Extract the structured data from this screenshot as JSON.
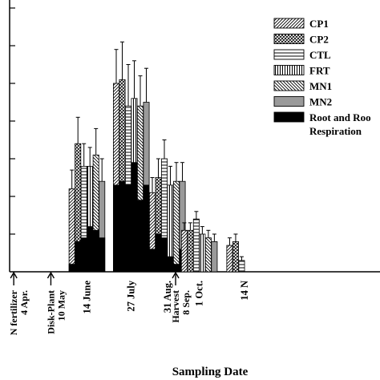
{
  "chart_data": {
    "type": "bar",
    "xlabel": "Sampling Date",
    "ylabel": "",
    "ylim": [
      0,
      35
    ],
    "grid": false,
    "legend_position": "top-right",
    "colors": {
      "axis": "#000000",
      "fill_gray": "#9a9a9a",
      "fill_black": "#000000",
      "background": "#ffffff"
    },
    "series": [
      {
        "name": "CP1",
        "pattern": "diag-right"
      },
      {
        "name": "CP2",
        "pattern": "crosshatch"
      },
      {
        "name": "CTL",
        "pattern": "horizontal"
      },
      {
        "name": "FRT",
        "pattern": "vertical"
      },
      {
        "name": "MN1",
        "pattern": "diag-left"
      },
      {
        "name": "MN2",
        "pattern": "gray"
      }
    ],
    "root_series": {
      "name": "Root and Root Respiration",
      "label_line1": "Root and Roo",
      "label_line2": "Respiration"
    },
    "sampling_dates": [
      {
        "label": "14 June",
        "day": 165,
        "values": [
          11,
          17,
          14,
          14,
          15.5,
          12
        ],
        "errors": [
          2.5,
          3.5,
          3,
          2.5,
          3.5,
          3
        ],
        "root": [
          1,
          4,
          4.5,
          6,
          5.5,
          4.5
        ]
      },
      {
        "label": "27 July",
        "day": 208,
        "values": [
          25,
          25.5,
          22,
          23,
          22,
          22.5
        ],
        "errors": [
          4.5,
          5,
          5.5,
          5,
          4,
          4.5
        ],
        "root": [
          11.5,
          12,
          11.5,
          14.5,
          9.5,
          11.5
        ]
      },
      {
        "label": "31 Aug.",
        "day": 243,
        "values": [
          10.5,
          12.5,
          15,
          11.5,
          12,
          12
        ],
        "errors": [
          2,
          2.5,
          2.5,
          2.5,
          2.5,
          2.5
        ],
        "root": [
          3,
          5,
          4.5,
          2,
          1,
          3
        ]
      },
      {
        "label": "1 Oct.",
        "day": 274,
        "values": [
          5.5,
          5.5,
          7,
          5,
          4.5,
          4
        ],
        "errors": [
          1,
          1,
          1,
          1,
          1,
          1
        ],
        "root": [
          0,
          0,
          0,
          0,
          0,
          0
        ]
      },
      {
        "label": "14 N",
        "day": 318,
        "values": [
          3.5,
          4,
          1.5
        ],
        "errors": [
          1,
          1,
          0.5
        ],
        "root": [
          0,
          0,
          0
        ]
      }
    ],
    "events": [
      {
        "label_lines": [
          "N fertilizer",
          "4 Apr."
        ],
        "day": 94
      },
      {
        "label_lines": [
          "Disk-Plant",
          "10 May"
        ],
        "day": 130
      },
      {
        "label_lines": [
          "Harvest",
          "8 Sep."
        ],
        "day": 251
      }
    ]
  }
}
